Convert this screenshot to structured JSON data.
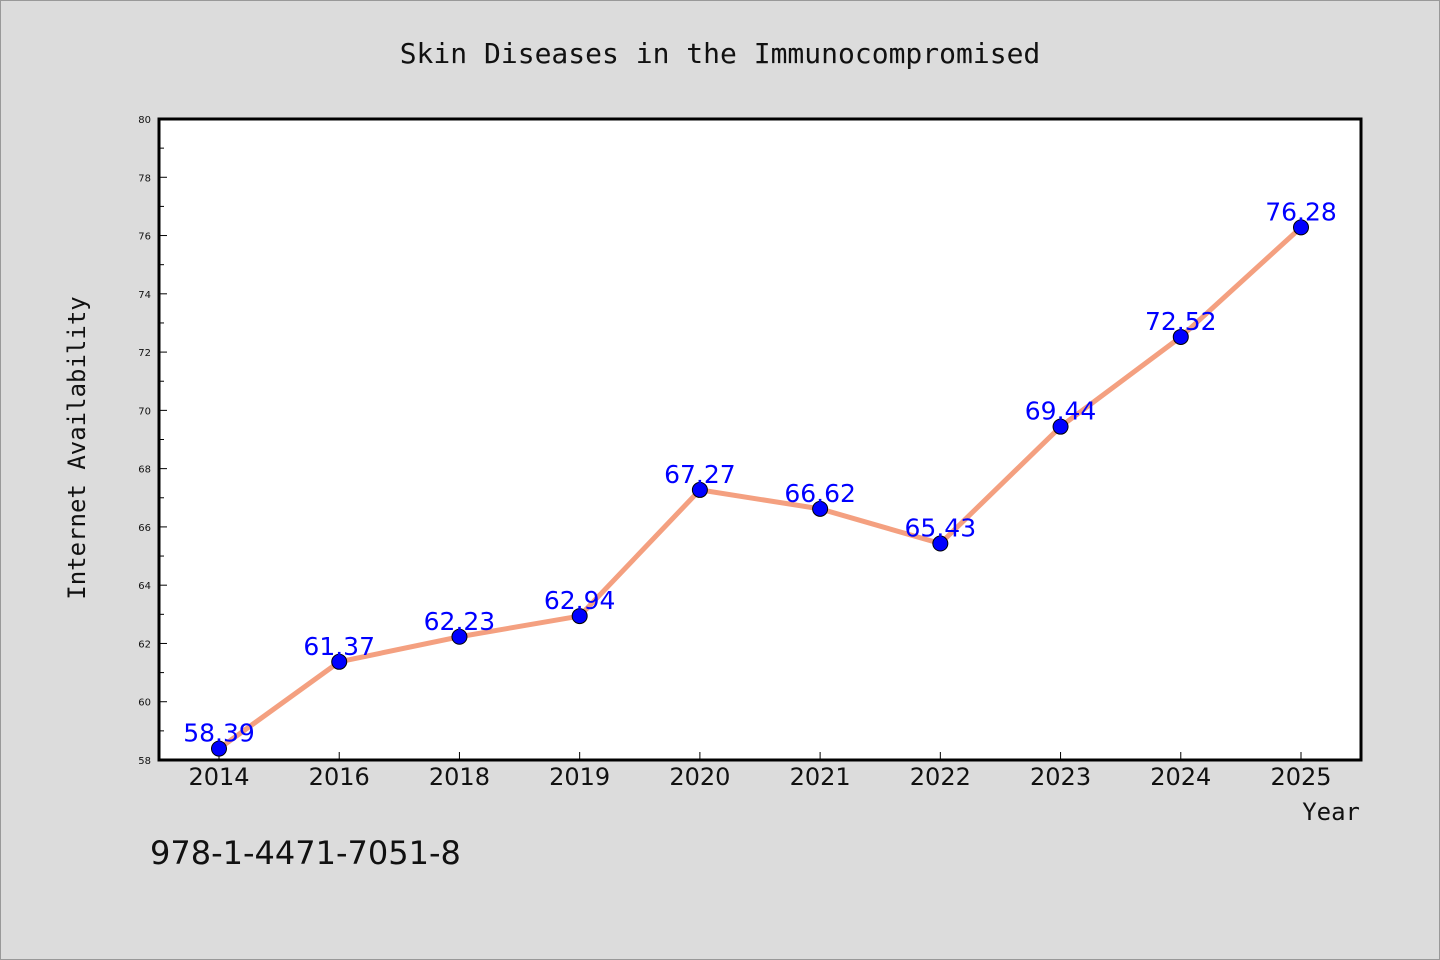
{
  "chart_data": {
    "type": "line",
    "title": "Skin Diseases in the Immunocompromised",
    "xlabel": "Year",
    "ylabel": "Internet Availability",
    "categories": [
      "2014",
      "2016",
      "2018",
      "2019",
      "2020",
      "2021",
      "2022",
      "2023",
      "2024",
      "2025"
    ],
    "series": [
      {
        "values": [
          58.39,
          61.37,
          62.23,
          62.94,
          67.27,
          66.62,
          65.43,
          69.44,
          72.52,
          76.28
        ],
        "data_labels": [
          "58.39",
          "61.37",
          "62.23",
          "62.94",
          "67.27",
          "66.62",
          "65.43",
          "69.44",
          "72.52",
          "76.28"
        ]
      }
    ],
    "ylim": [
      58,
      80
    ],
    "yticks": [
      "58",
      "60",
      "62",
      "64",
      "66",
      "68",
      "70",
      "72",
      "74",
      "76",
      "78",
      "80"
    ],
    "grid": false,
    "legend": "none",
    "colors": {
      "line": "#f4a080",
      "marker": "#0000ff",
      "label": "#0000ff",
      "background": "#dcdcdc",
      "plot_background": "#ffffff"
    }
  },
  "annotation": "978-1-4471-7051-8"
}
